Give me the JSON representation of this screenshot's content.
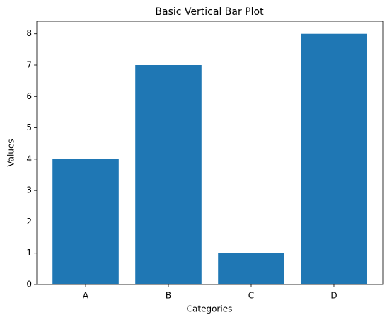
{
  "chart_data": {
    "type": "bar",
    "title": "Basic Vertical Bar Plot",
    "xlabel": "Categories",
    "ylabel": "Values",
    "categories": [
      "A",
      "B",
      "C",
      "D"
    ],
    "values": [
      4,
      7,
      1,
      8
    ],
    "color": "#1f77b4",
    "ylim": [
      0,
      8.4
    ],
    "yticks": [
      0,
      1,
      2,
      3,
      4,
      5,
      6,
      7,
      8
    ],
    "grid": false
  }
}
